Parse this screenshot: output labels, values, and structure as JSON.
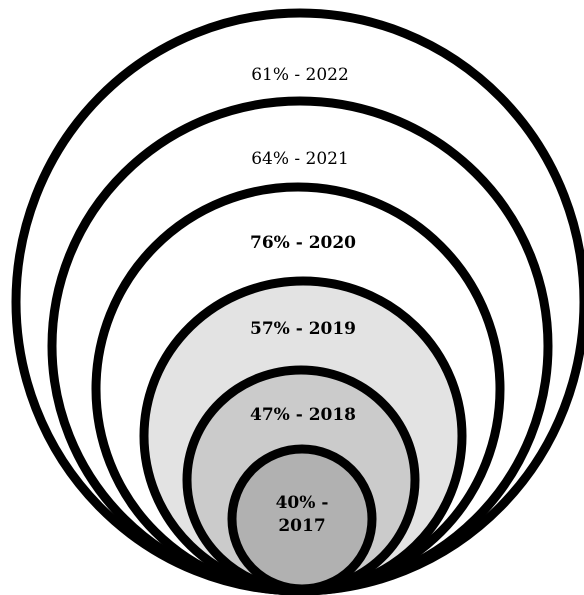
{
  "colors": {
    "stroke": "#000000",
    "fill_2022": "#ffffff",
    "fill_2021": "#ffffff",
    "fill_2020": "#ffffff",
    "fill_2019": "#e3e3e3",
    "fill_2018": "#cbcbcb",
    "fill_2017": "#b1b1b1"
  },
  "rings": [
    {
      "label": "61% - 2022",
      "percent": 61,
      "year": "2022",
      "bold": false
    },
    {
      "label": "64% - 2021",
      "percent": 64,
      "year": "2021",
      "bold": false
    },
    {
      "label": "76% - 2020",
      "percent": 76,
      "year": "2020",
      "bold": true
    },
    {
      "label": "57% - 2019",
      "percent": 57,
      "year": "2019",
      "bold": true
    },
    {
      "label": "47% - 2018",
      "percent": 47,
      "year": "2018",
      "bold": true
    },
    {
      "label_line1": "40% -",
      "label_line2": "2017",
      "percent": 40,
      "year": "2017",
      "bold": true
    }
  ]
}
